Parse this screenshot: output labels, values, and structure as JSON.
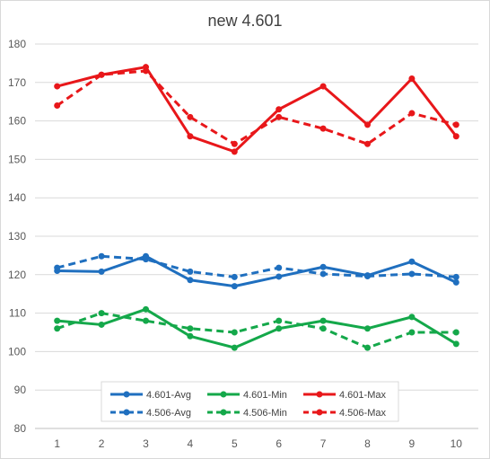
{
  "chart_data": {
    "type": "line",
    "title": "new 4.601",
    "x": [
      1,
      2,
      3,
      4,
      5,
      6,
      7,
      8,
      9,
      10
    ],
    "ylim": [
      80,
      180
    ],
    "yticks": [
      80,
      90,
      100,
      110,
      120,
      130,
      140,
      150,
      160,
      170,
      180
    ],
    "grid": true,
    "legend_position": "bottom-left",
    "series": [
      {
        "name": "4.601-Avg",
        "color": "#1f6fbf",
        "dash": "solid",
        "values": [
          121,
          120.8,
          124.8,
          118.6,
          117,
          119.5,
          122,
          119.8,
          123.4,
          118
        ]
      },
      {
        "name": "4.601-Min",
        "color": "#14a84a",
        "dash": "solid",
        "values": [
          108,
          107,
          111,
          104,
          101,
          106,
          108,
          106,
          109,
          102
        ]
      },
      {
        "name": "4.601-Max",
        "color": "#e8171a",
        "dash": "solid",
        "values": [
          169,
          172,
          174,
          156,
          152,
          163,
          169,
          159,
          171,
          156
        ]
      },
      {
        "name": "4.506-Avg",
        "color": "#1f6fbf",
        "dash": "dashed",
        "values": [
          121.8,
          124.8,
          124,
          120.8,
          119.4,
          121.8,
          120.2,
          119.6,
          120.2,
          119.4
        ]
      },
      {
        "name": "4.506-Min",
        "color": "#14a84a",
        "dash": "dashed",
        "values": [
          106,
          110,
          108,
          106,
          105,
          108,
          106,
          101,
          105,
          105
        ]
      },
      {
        "name": "4.506-Max",
        "color": "#e8171a",
        "dash": "dashed",
        "values": [
          164,
          172,
          173,
          161,
          154,
          161,
          158,
          154,
          162,
          159
        ]
      }
    ]
  }
}
